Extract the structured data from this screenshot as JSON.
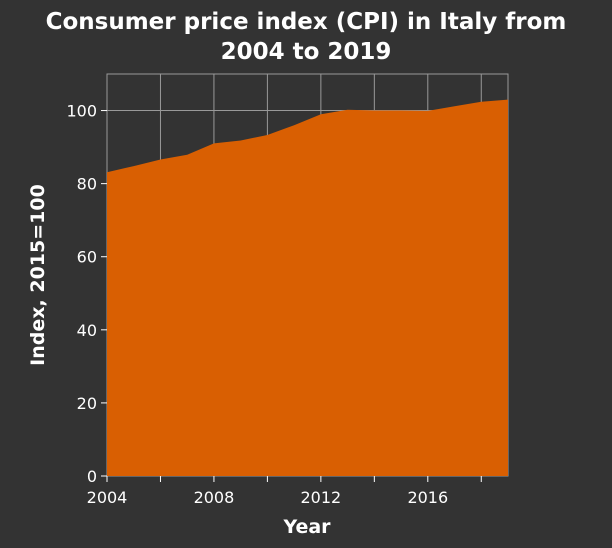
{
  "chart_data": {
    "type": "area",
    "title_line1": "Consumer price index (CPI) in Italy from",
    "title_line2": "2004 to 2019",
    "xlabel": "Year",
    "ylabel": "Index, 2015=100",
    "xlim": [
      2004,
      2019
    ],
    "ylim": [
      0,
      110
    ],
    "x_ticks": [
      2004,
      2006,
      2008,
      2010,
      2012,
      2014,
      2016,
      2018
    ],
    "x_tick_labels": [
      "2004",
      "",
      "2008",
      "",
      "2012",
      "",
      "2016",
      ""
    ],
    "y_ticks": [
      0,
      20,
      40,
      60,
      80,
      100
    ],
    "grid": true,
    "series": [
      {
        "x": [
          2004,
          2005,
          2006,
          2007,
          2008,
          2009,
          2010,
          2011,
          2012,
          2013,
          2014,
          2015,
          2016,
          2017,
          2018,
          2019
        ],
        "values": [
          83.1,
          84.8,
          86.6,
          87.9,
          91.0,
          91.8,
          93.3,
          96.0,
          99.0,
          100.2,
          100.0,
          100.0,
          99.9,
          101.2,
          102.4,
          103.0
        ]
      }
    ]
  },
  "colors": {
    "background": "#333333",
    "fill": "#d95f02",
    "grid": "#999999",
    "text": "#ffffff"
  }
}
